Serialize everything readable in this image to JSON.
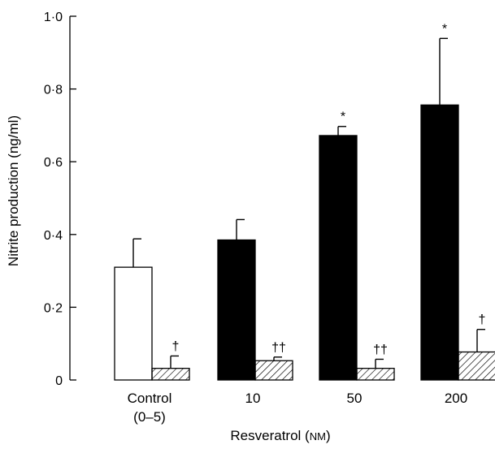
{
  "chart_data": {
    "type": "bar",
    "xlabel": "Resveratrol (nM)",
    "ylabel": "Nitrite production (ng/ml)",
    "ylim": [
      0,
      1.0
    ],
    "yticks": [
      0,
      0.2,
      0.4,
      0.6,
      0.8,
      1.0
    ],
    "ytick_labels": [
      "0",
      "0·2",
      "0·4",
      "0·6",
      "0·8",
      "1·0"
    ],
    "categories": [
      {
        "line1": "Control",
        "line2": "(0–5)"
      },
      {
        "line1": "10",
        "line2": ""
      },
      {
        "line1": "50",
        "line2": ""
      },
      {
        "line1": "200",
        "line2": ""
      }
    ],
    "series": [
      {
        "style": "solid",
        "fills": [
          "#ffffff",
          "#000000",
          "#000000",
          "#000000"
        ],
        "values": [
          0.31,
          0.385,
          0.672,
          0.756
        ],
        "errors": [
          0.078,
          0.056,
          0.025,
          0.183
        ],
        "markers": [
          "",
          "",
          "*",
          "*"
        ]
      },
      {
        "style": "hatched",
        "values": [
          0.032,
          0.053,
          0.032,
          0.077
        ],
        "errors": [
          0.034,
          0.01,
          0.025,
          0.062
        ],
        "markers": [
          "†",
          "††",
          "††",
          "†"
        ]
      }
    ],
    "grid": false,
    "legend": "none"
  }
}
